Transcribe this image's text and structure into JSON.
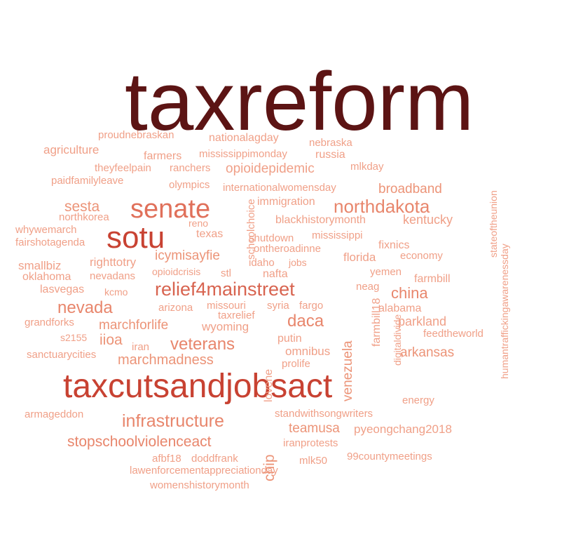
{
  "chart_data": {
    "type": "wordcloud",
    "words": [
      {
        "text": "taxreform",
        "weight": 100,
        "color": "#5c1414"
      },
      {
        "text": "taxcutsandjobsact",
        "weight": 42,
        "color": "#c84232"
      },
      {
        "text": "sotu",
        "weight": 36,
        "color": "#c84232"
      },
      {
        "text": "senate",
        "weight": 32,
        "color": "#e0705a"
      },
      {
        "text": "relief4mainstreet",
        "weight": 25,
        "color": "#d86450"
      },
      {
        "text": "northdakota",
        "weight": 23,
        "color": "#e8866c"
      },
      {
        "text": "infrastructure",
        "weight": 22,
        "color": "#e8866c"
      },
      {
        "text": "veterans",
        "weight": 21,
        "color": "#e8866c"
      },
      {
        "text": "nevada",
        "weight": 21,
        "color": "#e8866c"
      },
      {
        "text": "daca",
        "weight": 21,
        "color": "#e8866c"
      },
      {
        "text": "stopschoolviolenceact",
        "weight": 18,
        "color": "#e8866c"
      },
      {
        "text": "sesta",
        "weight": 18,
        "color": "#ec9478"
      },
      {
        "text": "china",
        "weight": 18,
        "color": "#e8866c"
      },
      {
        "text": "marchmadness",
        "weight": 17,
        "color": "#ec9478"
      },
      {
        "text": "icymisayfie",
        "weight": 17,
        "color": "#ec9478"
      },
      {
        "text": "marchforlife",
        "weight": 16,
        "color": "#ec9478"
      },
      {
        "text": "arkansas",
        "weight": 16,
        "color": "#ec9478"
      },
      {
        "text": "broadband",
        "weight": 16,
        "color": "#ec9478"
      },
      {
        "text": "teamusa",
        "weight": 16,
        "color": "#ec9478"
      },
      {
        "text": "venezuela",
        "weight": 16,
        "color": "#ec9478"
      },
      {
        "text": "iioa",
        "weight": 16,
        "color": "#ec9478"
      },
      {
        "text": "chip",
        "weight": 16,
        "color": "#ec9478"
      },
      {
        "text": "opioidepidemic",
        "weight": 15,
        "color": "#f0a088"
      },
      {
        "text": "kentucky",
        "weight": 15,
        "color": "#f0a088"
      },
      {
        "text": "parkland",
        "weight": 15,
        "color": "#f0a088"
      },
      {
        "text": "righttotry",
        "weight": 15,
        "color": "#f0a088"
      },
      {
        "text": "smallbiz",
        "weight": 15,
        "color": "#f0a088"
      },
      {
        "text": "florida",
        "weight": 15,
        "color": "#f0a088"
      },
      {
        "text": "agriculture",
        "weight": 15,
        "color": "#f0a088"
      },
      {
        "text": "fixnics",
        "weight": 14,
        "color": "#f0a088"
      },
      {
        "text": "alabama",
        "weight": 14,
        "color": "#f0a088"
      },
      {
        "text": "pyeongchang2018",
        "weight": 14,
        "color": "#f0a088"
      },
      {
        "text": "wyoming",
        "weight": 14,
        "color": "#f0a088"
      },
      {
        "text": "immigration",
        "weight": 14,
        "color": "#f0a088"
      },
      {
        "text": "lasvegas",
        "weight": 14,
        "color": "#f0a088"
      },
      {
        "text": "blackhistorymonth",
        "weight": 14,
        "color": "#f0a088"
      },
      {
        "text": "farmbill",
        "weight": 14,
        "color": "#f0a088"
      },
      {
        "text": "farmers",
        "weight": 14,
        "color": "#f0a088"
      },
      {
        "text": "oklahoma",
        "weight": 14,
        "color": "#f0a088"
      },
      {
        "text": "omnibus",
        "weight": 14,
        "color": "#f0a088"
      },
      {
        "text": "nafta",
        "weight": 14,
        "color": "#f0a088"
      },
      {
        "text": "texas",
        "weight": 14,
        "color": "#f0a088"
      },
      {
        "text": "mississippi",
        "weight": 14,
        "color": "#f0a088"
      },
      {
        "text": "nebraska",
        "weight": 14,
        "color": "#f0a088"
      },
      {
        "text": "russia",
        "weight": 14,
        "color": "#f0a088"
      },
      {
        "text": "whywemarch",
        "weight": 14,
        "color": "#f0a088"
      },
      {
        "text": "nationalagday",
        "weight": 14,
        "color": "#f0a088"
      },
      {
        "text": "proudnebraskan",
        "weight": 14,
        "color": "#f0a088"
      },
      {
        "text": "theyfeelpain",
        "weight": 14,
        "color": "#f0a088"
      },
      {
        "text": "ranchers",
        "weight": 14,
        "color": "#f0a088"
      },
      {
        "text": "mlkday",
        "weight": 14,
        "color": "#f0a088"
      },
      {
        "text": "putin",
        "weight": 14,
        "color": "#f0a088"
      },
      {
        "text": "iran",
        "weight": 14,
        "color": "#f0a088"
      },
      {
        "text": "prolife",
        "weight": 14,
        "color": "#f0a088"
      },
      {
        "text": "lovene",
        "weight": 14,
        "color": "#f0a088"
      },
      {
        "text": "fargo",
        "weight": 14,
        "color": "#f0a088"
      },
      {
        "text": "missouri",
        "weight": 14,
        "color": "#f0a088"
      },
      {
        "text": "arizona",
        "weight": 14,
        "color": "#f0a088"
      },
      {
        "text": "syria",
        "weight": 14,
        "color": "#f0a088"
      },
      {
        "text": "idaho",
        "weight": 14,
        "color": "#f0a088"
      },
      {
        "text": "jobs",
        "weight": 14,
        "color": "#f0a088"
      },
      {
        "text": "grandforks",
        "weight": 14,
        "color": "#f0a088"
      },
      {
        "text": "s2155",
        "weight": 14,
        "color": "#f0a088"
      },
      {
        "text": "sanctuarycities",
        "weight": 14,
        "color": "#f0a088"
      },
      {
        "text": "mlk50",
        "weight": 14,
        "color": "#f0a088"
      },
      {
        "text": "99countymeetings",
        "weight": 14,
        "color": "#f0a088"
      },
      {
        "text": "afbf18",
        "weight": 14,
        "color": "#f0a088"
      },
      {
        "text": "doddfrank",
        "weight": 14,
        "color": "#f0a088"
      },
      {
        "text": "lawenforcementappreciationday",
        "weight": 14,
        "color": "#f0a088"
      },
      {
        "text": "womenshistorymonth",
        "weight": 14,
        "color": "#f0a088"
      },
      {
        "text": "iranprotests",
        "weight": 14,
        "color": "#f0a088"
      },
      {
        "text": "standwithsongwriters",
        "weight": 14,
        "color": "#f0a088"
      },
      {
        "text": "energy",
        "weight": 14,
        "color": "#f0a088"
      },
      {
        "text": "armageddon",
        "weight": 14,
        "color": "#f0a088"
      },
      {
        "text": "feedtheworld",
        "weight": 14,
        "color": "#f0a088"
      },
      {
        "text": "economy",
        "weight": 14,
        "color": "#f0a088"
      },
      {
        "text": "yemen",
        "weight": 14,
        "color": "#f0a088"
      },
      {
        "text": "neag",
        "weight": 14,
        "color": "#f0a088"
      },
      {
        "text": "olympics",
        "weight": 14,
        "color": "#f0a088"
      },
      {
        "text": "internationalwomensday",
        "weight": 14,
        "color": "#f0a088"
      },
      {
        "text": "paidfamilyleave",
        "weight": 14,
        "color": "#f0a088"
      },
      {
        "text": "mississippimonday",
        "weight": 14,
        "color": "#f0a088"
      },
      {
        "text": "northkorea",
        "weight": 14,
        "color": "#f0a088"
      },
      {
        "text": "reno",
        "weight": 14,
        "color": "#f0a088"
      },
      {
        "text": "fairshotagenda",
        "weight": 14,
        "color": "#f0a088"
      },
      {
        "text": "shutdown",
        "weight": 14,
        "color": "#f0a088"
      },
      {
        "text": "ontheroadinne",
        "weight": 14,
        "color": "#f0a088"
      },
      {
        "text": "nevadans",
        "weight": 14,
        "color": "#f0a088"
      },
      {
        "text": "opioidcrisis",
        "weight": 14,
        "color": "#f0a088"
      },
      {
        "text": "stl",
        "weight": 14,
        "color": "#f0a088"
      },
      {
        "text": "kcmo",
        "weight": 14,
        "color": "#f0a088"
      },
      {
        "text": "taxrelief",
        "weight": 14,
        "color": "#f0a088"
      },
      {
        "text": "schoolchoice",
        "weight": 14,
        "color": "#f0a088"
      },
      {
        "text": "farmbill18",
        "weight": 14,
        "color": "#f0a088"
      },
      {
        "text": "digitaldivide",
        "weight": 14,
        "color": "#f0a088"
      },
      {
        "text": "stateoftheunion",
        "weight": 14,
        "color": "#f0a088"
      },
      {
        "text": "humantraffickingawarenessday",
        "weight": 14,
        "color": "#f0a088"
      }
    ]
  }
}
